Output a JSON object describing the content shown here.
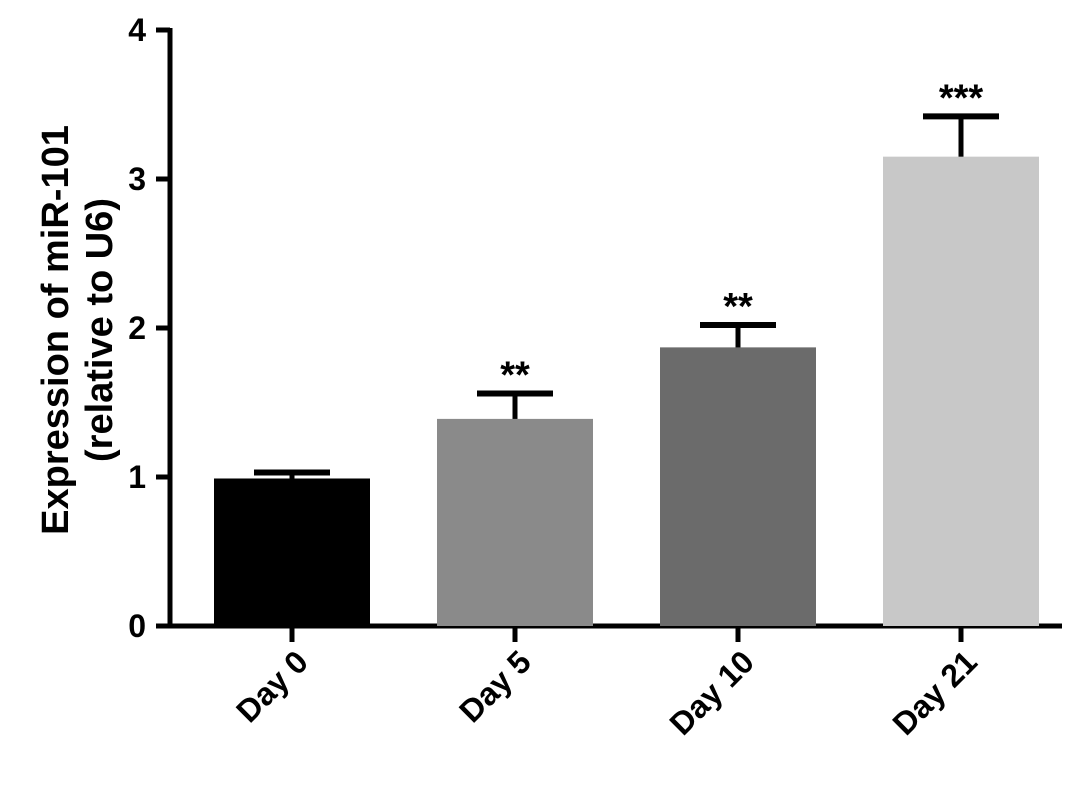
{
  "chart_data": {
    "type": "bar",
    "categories": [
      "Day 0",
      "Day 5",
      "Day 10",
      "Day 21"
    ],
    "values": [
      0.99,
      1.39,
      1.87,
      3.15
    ],
    "error": [
      0.04,
      0.17,
      0.15,
      0.27
    ],
    "significance": [
      "",
      "**",
      "**",
      "***"
    ],
    "colors": [
      "#000000",
      "#8a8a8a",
      "#6b6b6b",
      "#c8c8c8"
    ],
    "ylabel_line1": "Expression of miR-101",
    "ylabel_line2": "(relative to U6)",
    "ylim": [
      0,
      4
    ],
    "yticks": [
      0,
      1,
      2,
      3,
      4
    ],
    "ytick_labels": [
      "0",
      "1",
      "2",
      "3",
      "4"
    ],
    "grid": false,
    "legend": "none"
  }
}
